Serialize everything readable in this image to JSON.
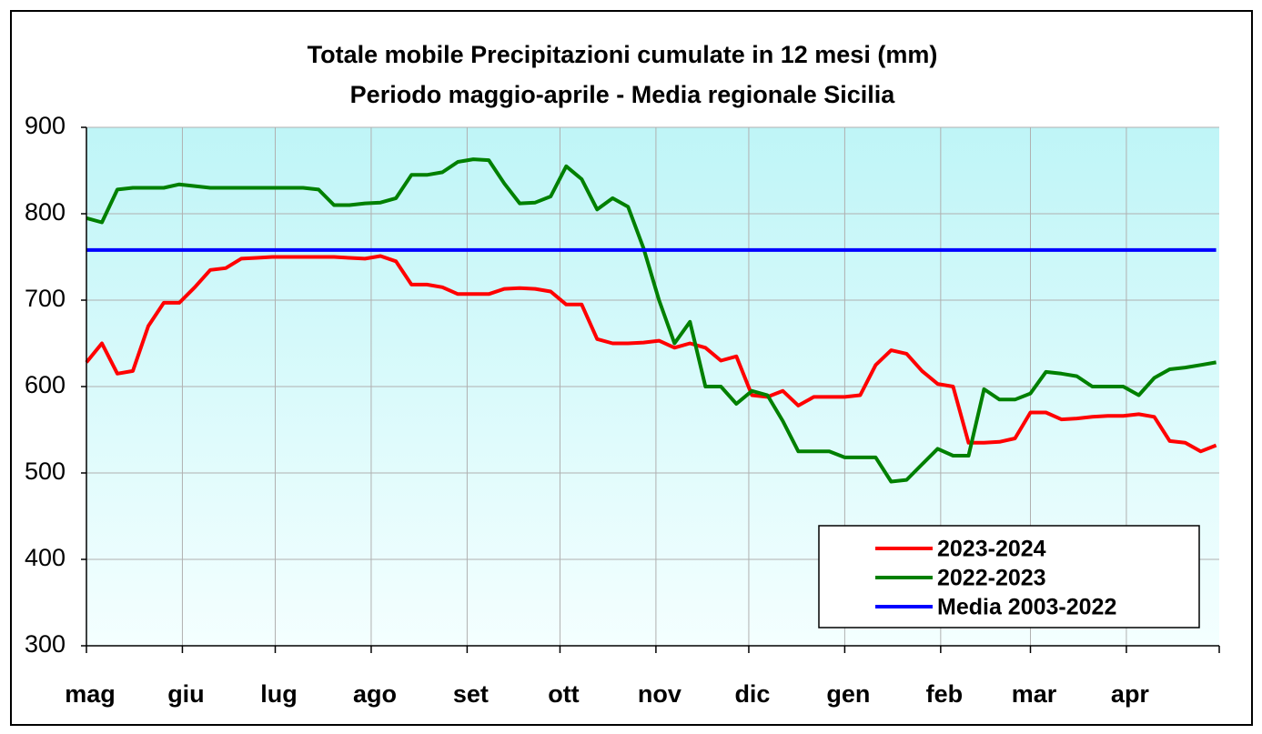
{
  "chart_data": {
    "type": "line",
    "title": "Totale mobile Precipitazioni cumulate in 12 mesi (mm)",
    "subtitle": "Periodo maggio-aprile - Media regionale Sicilia",
    "x": [
      0,
      5,
      10,
      15,
      20,
      25,
      30,
      35,
      40,
      45,
      50,
      55,
      60,
      65,
      70,
      75,
      80,
      85,
      90,
      95,
      100,
      105,
      110,
      115,
      120,
      125,
      130,
      135,
      140,
      145,
      150,
      155,
      160,
      165,
      170,
      175,
      180,
      185,
      190,
      195,
      200,
      205,
      210,
      215,
      220,
      225,
      230,
      235,
      240,
      245,
      250,
      255,
      260,
      265,
      270,
      275,
      280,
      285,
      290,
      295,
      300,
      305,
      310,
      315,
      320,
      325,
      330,
      335,
      340,
      345,
      350,
      355,
      360,
      365
    ],
    "xlim": [
      0,
      366
    ],
    "xticks": [
      {
        "value": 0,
        "label": "mag"
      },
      {
        "value": 31,
        "label": "giu"
      },
      {
        "value": 61,
        "label": "lug"
      },
      {
        "value": 92,
        "label": "ago"
      },
      {
        "value": 123,
        "label": "set"
      },
      {
        "value": 153,
        "label": "ott"
      },
      {
        "value": 184,
        "label": "nov"
      },
      {
        "value": 214,
        "label": "dic"
      },
      {
        "value": 245,
        "label": "gen"
      },
      {
        "value": 276,
        "label": "feb"
      },
      {
        "value": 305,
        "label": "mar"
      },
      {
        "value": 336,
        "label": "apr"
      }
    ],
    "ylim": [
      300,
      900
    ],
    "yticks": [
      300,
      400,
      500,
      600,
      700,
      800,
      900
    ],
    "grid": true,
    "legend": "lower right",
    "series": [
      {
        "name": "2023-2024",
        "color": "#ff0000",
        "values": [
          628,
          650,
          615,
          618,
          670,
          697,
          697,
          715,
          735,
          737,
          748,
          749,
          750,
          750,
          750,
          750,
          750,
          749,
          748,
          751,
          745,
          718,
          718,
          715,
          707,
          707,
          707,
          713,
          714,
          713,
          710,
          695,
          695,
          655,
          650,
          650,
          651,
          653,
          645,
          650,
          645,
          630,
          635,
          590,
          588,
          595,
          578,
          588,
          588,
          588,
          590,
          625,
          642,
          638,
          618,
          603,
          600,
          535,
          535,
          536,
          540,
          570,
          570,
          562,
          563,
          565,
          566,
          566,
          568,
          565,
          537,
          535,
          525,
          532
        ]
      },
      {
        "name": "2022-2023",
        "color": "#008000",
        "values": [
          795,
          790,
          828,
          830,
          830,
          830,
          834,
          832,
          830,
          830,
          830,
          830,
          830,
          830,
          830,
          828,
          810,
          810,
          812,
          813,
          818,
          845,
          845,
          848,
          860,
          863,
          862,
          835,
          812,
          813,
          820,
          855,
          840,
          805,
          818,
          808,
          760,
          700,
          650,
          675,
          600,
          600,
          580,
          595,
          590,
          560,
          525,
          525,
          525,
          518,
          518,
          518,
          490,
          492,
          510,
          528,
          520,
          520,
          597,
          585,
          585,
          592,
          617,
          615,
          612,
          600,
          600,
          600,
          590,
          610,
          620,
          622,
          625,
          628
        ]
      },
      {
        "name": "Media 2003-2022",
        "color": "#0000ff",
        "values": [
          758,
          758,
          758,
          758,
          758,
          758,
          758,
          758,
          758,
          758,
          758,
          758,
          758,
          758,
          758,
          758,
          758,
          758,
          758,
          758,
          758,
          758,
          758,
          758,
          758,
          758,
          758,
          758,
          758,
          758,
          758,
          758,
          758,
          758,
          758,
          758,
          758,
          758,
          758,
          758,
          758,
          758,
          758,
          758,
          758,
          758,
          758,
          758,
          758,
          758,
          758,
          758,
          758,
          758,
          758,
          758,
          758,
          758,
          758,
          758,
          758,
          758,
          758,
          758,
          758,
          758,
          758,
          758,
          758,
          758,
          758,
          758,
          758,
          758
        ]
      }
    ]
  }
}
